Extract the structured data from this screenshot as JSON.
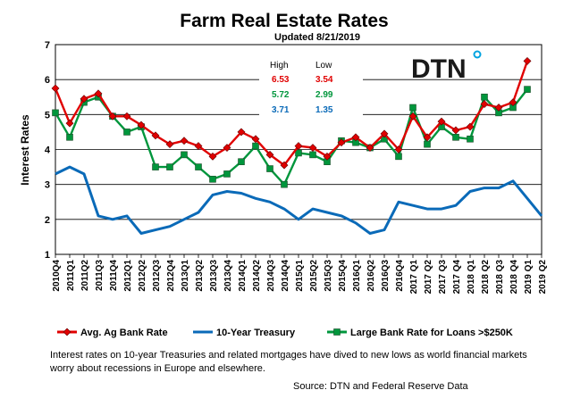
{
  "chart_data": {
    "type": "line",
    "title": "Farm Real Estate Rates",
    "subtitle": "Updated 8/21/2019",
    "ylabel": "Interest Rates",
    "xlabel": "",
    "ylim": [
      1,
      7
    ],
    "yticks": [
      "1",
      "2",
      "3",
      "4",
      "5",
      "6",
      "7"
    ],
    "grid": true,
    "legend_position": "bottom",
    "categories": [
      "2010Q4",
      "2011Q1",
      "2011Q2",
      "2011Q3",
      "2011Q4",
      "2012Q1",
      "2012Q2",
      "2012Q3",
      "2012Q4",
      "2013Q1",
      "2013Q2",
      "2013Q3",
      "2013Q4",
      "2014Q1",
      "2014Q2",
      "2014Q3",
      "2014Q4",
      "2015Q1",
      "2015Q2",
      "2015Q3",
      "2015Q4",
      "2016Q1",
      "2016Q2",
      "2016Q3",
      "2016Q4",
      "2017 Q1",
      "2017 Q2",
      "2017 Q3",
      "2017 Q4",
      "2018 Q1",
      "2018 Q2",
      "2018 Q3",
      "2018 Q4",
      "2019 Q1",
      "2019 Q2"
    ],
    "series": [
      {
        "name": "Avg. Ag Bank Rate",
        "color": "#e00000",
        "marker": "diamond",
        "values": [
          5.75,
          4.75,
          5.45,
          5.6,
          4.95,
          4.95,
          4.7,
          4.4,
          4.15,
          4.25,
          4.1,
          3.8,
          4.05,
          4.5,
          4.3,
          3.85,
          3.55,
          4.1,
          4.05,
          3.8,
          4.2,
          4.35,
          4.05,
          4.45,
          4.0,
          4.95,
          4.35,
          4.8,
          4.55,
          4.65,
          5.3,
          5.2,
          5.35,
          6.53,
          null
        ]
      },
      {
        "name": "Large Bank Rate for Loans >$250K",
        "color": "#00963c",
        "marker": "square",
        "values": [
          5.05,
          4.35,
          5.35,
          5.5,
          4.95,
          4.5,
          4.65,
          3.5,
          3.5,
          3.85,
          3.5,
          3.15,
          3.3,
          3.65,
          4.1,
          3.45,
          3.0,
          3.9,
          3.85,
          3.65,
          4.25,
          4.2,
          4.05,
          4.3,
          3.8,
          5.2,
          4.15,
          4.65,
          4.35,
          4.3,
          5.5,
          5.05,
          5.2,
          5.72,
          null
        ]
      },
      {
        "name": "10-Year Treasury",
        "color": "#0a6ab8",
        "marker": "none",
        "values": [
          3.3,
          3.5,
          3.3,
          2.1,
          2.0,
          2.1,
          1.6,
          1.7,
          1.8,
          2.0,
          2.2,
          2.7,
          2.8,
          2.75,
          2.6,
          2.5,
          2.3,
          2.0,
          2.3,
          2.2,
          2.1,
          1.9,
          1.6,
          1.7,
          2.5,
          2.4,
          2.3,
          2.3,
          2.4,
          2.8,
          2.9,
          2.9,
          3.1,
          2.6,
          2.1
        ]
      }
    ],
    "inset_table": {
      "headers": [
        "High",
        "Low"
      ],
      "rows": [
        {
          "high": "6.53",
          "low": "3.54",
          "color": "#e00000"
        },
        {
          "high": "5.72",
          "low": "2.99",
          "color": "#00963c"
        },
        {
          "high": "3.71",
          "low": "1.35",
          "color": "#0a6ab8"
        }
      ]
    },
    "logo": {
      "text": "DTN",
      "color": "#1a1a1a",
      "dot_colors": [
        "#00a3e0",
        "#8dc63f"
      ]
    },
    "caption": "Interest rates on 10-year Treasuries and related mortgages have dived to new lows as world financial markets worry about recessions in Europe and elsewhere.",
    "source": "Source: DTN and Federal Reserve Data"
  }
}
